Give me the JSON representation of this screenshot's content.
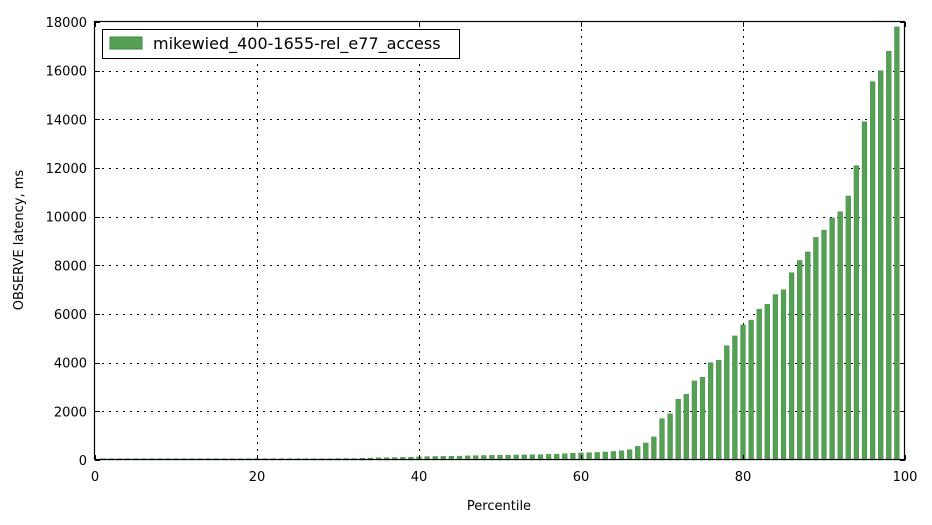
{
  "chart_data": {
    "type": "bar",
    "title": "",
    "xlabel": "Percentile",
    "ylabel": "OBSERVE latency, ms",
    "xlim": [
      0,
      100
    ],
    "ylim": [
      0,
      18000
    ],
    "xticks": [
      "0",
      "20",
      "40",
      "60",
      "80",
      "100"
    ],
    "yticks": [
      "0",
      "2000",
      "4000",
      "6000",
      "8000",
      "10000",
      "12000",
      "14000",
      "16000",
      "18000"
    ],
    "grid": true,
    "legend_position": "top-left",
    "colors": {
      "bar": "#55a055",
      "bar_edge": "#3d8a3d"
    },
    "series": [
      {
        "name": "mikewied_400-1655-rel_e77_access",
        "x": [
          1,
          2,
          3,
          4,
          5,
          6,
          7,
          8,
          9,
          10,
          11,
          12,
          13,
          14,
          15,
          16,
          17,
          18,
          19,
          20,
          21,
          22,
          23,
          24,
          25,
          26,
          27,
          28,
          29,
          30,
          31,
          32,
          33,
          34,
          35,
          36,
          37,
          38,
          39,
          40,
          41,
          42,
          43,
          44,
          45,
          46,
          47,
          48,
          49,
          50,
          51,
          52,
          53,
          54,
          55,
          56,
          57,
          58,
          59,
          60,
          61,
          62,
          63,
          64,
          65,
          66,
          67,
          68,
          69,
          70,
          71,
          72,
          73,
          74,
          75,
          76,
          77,
          78,
          79,
          80,
          81,
          82,
          83,
          84,
          85,
          86,
          87,
          88,
          89,
          90,
          91,
          92,
          93,
          94,
          95,
          96,
          97,
          98,
          99
        ],
        "values": [
          55,
          55,
          55,
          55,
          55,
          55,
          55,
          55,
          55,
          55,
          55,
          55,
          55,
          55,
          55,
          55,
          55,
          55,
          55,
          55,
          55,
          55,
          55,
          55,
          55,
          55,
          55,
          55,
          55,
          60,
          60,
          60,
          70,
          80,
          90,
          95,
          100,
          110,
          115,
          130,
          140,
          145,
          150,
          155,
          160,
          170,
          180,
          185,
          190,
          195,
          200,
          205,
          210,
          215,
          220,
          230,
          240,
          260,
          280,
          290,
          300,
          310,
          330,
          350,
          380,
          420,
          560,
          700,
          950,
          1700,
          1900,
          2500,
          2700,
          3250,
          3400,
          4000,
          4100,
          4700,
          5100,
          5550,
          5750,
          6200,
          6400,
          6800,
          7000,
          7700,
          8200,
          8550,
          9150,
          9450,
          9950,
          10200,
          10850,
          12100,
          13900,
          15550,
          16000,
          16800,
          17800
        ]
      }
    ]
  }
}
